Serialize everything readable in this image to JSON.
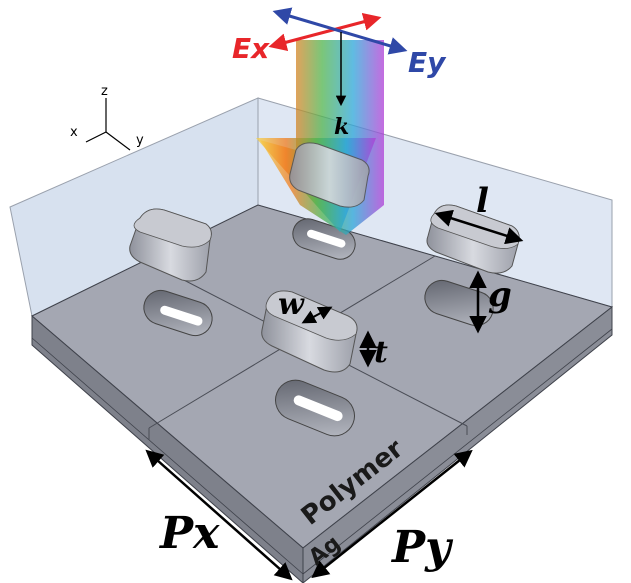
{
  "axes": {
    "x": "x",
    "y": "y",
    "z": "z"
  },
  "field_labels": {
    "ex": "Ex",
    "ey": "Ey",
    "k": "k"
  },
  "dimension_labels": {
    "l": "l",
    "g": "g",
    "w": "w",
    "t": "t",
    "px": "Px",
    "py": "Py"
  },
  "layers": {
    "polymer": "Polymer",
    "ag": "Ag"
  },
  "colors": {
    "ex": "#e8262a",
    "ey": "#2f48a7",
    "substrate": "#a3a6b2",
    "polymer_box": "#dde6f2"
  }
}
